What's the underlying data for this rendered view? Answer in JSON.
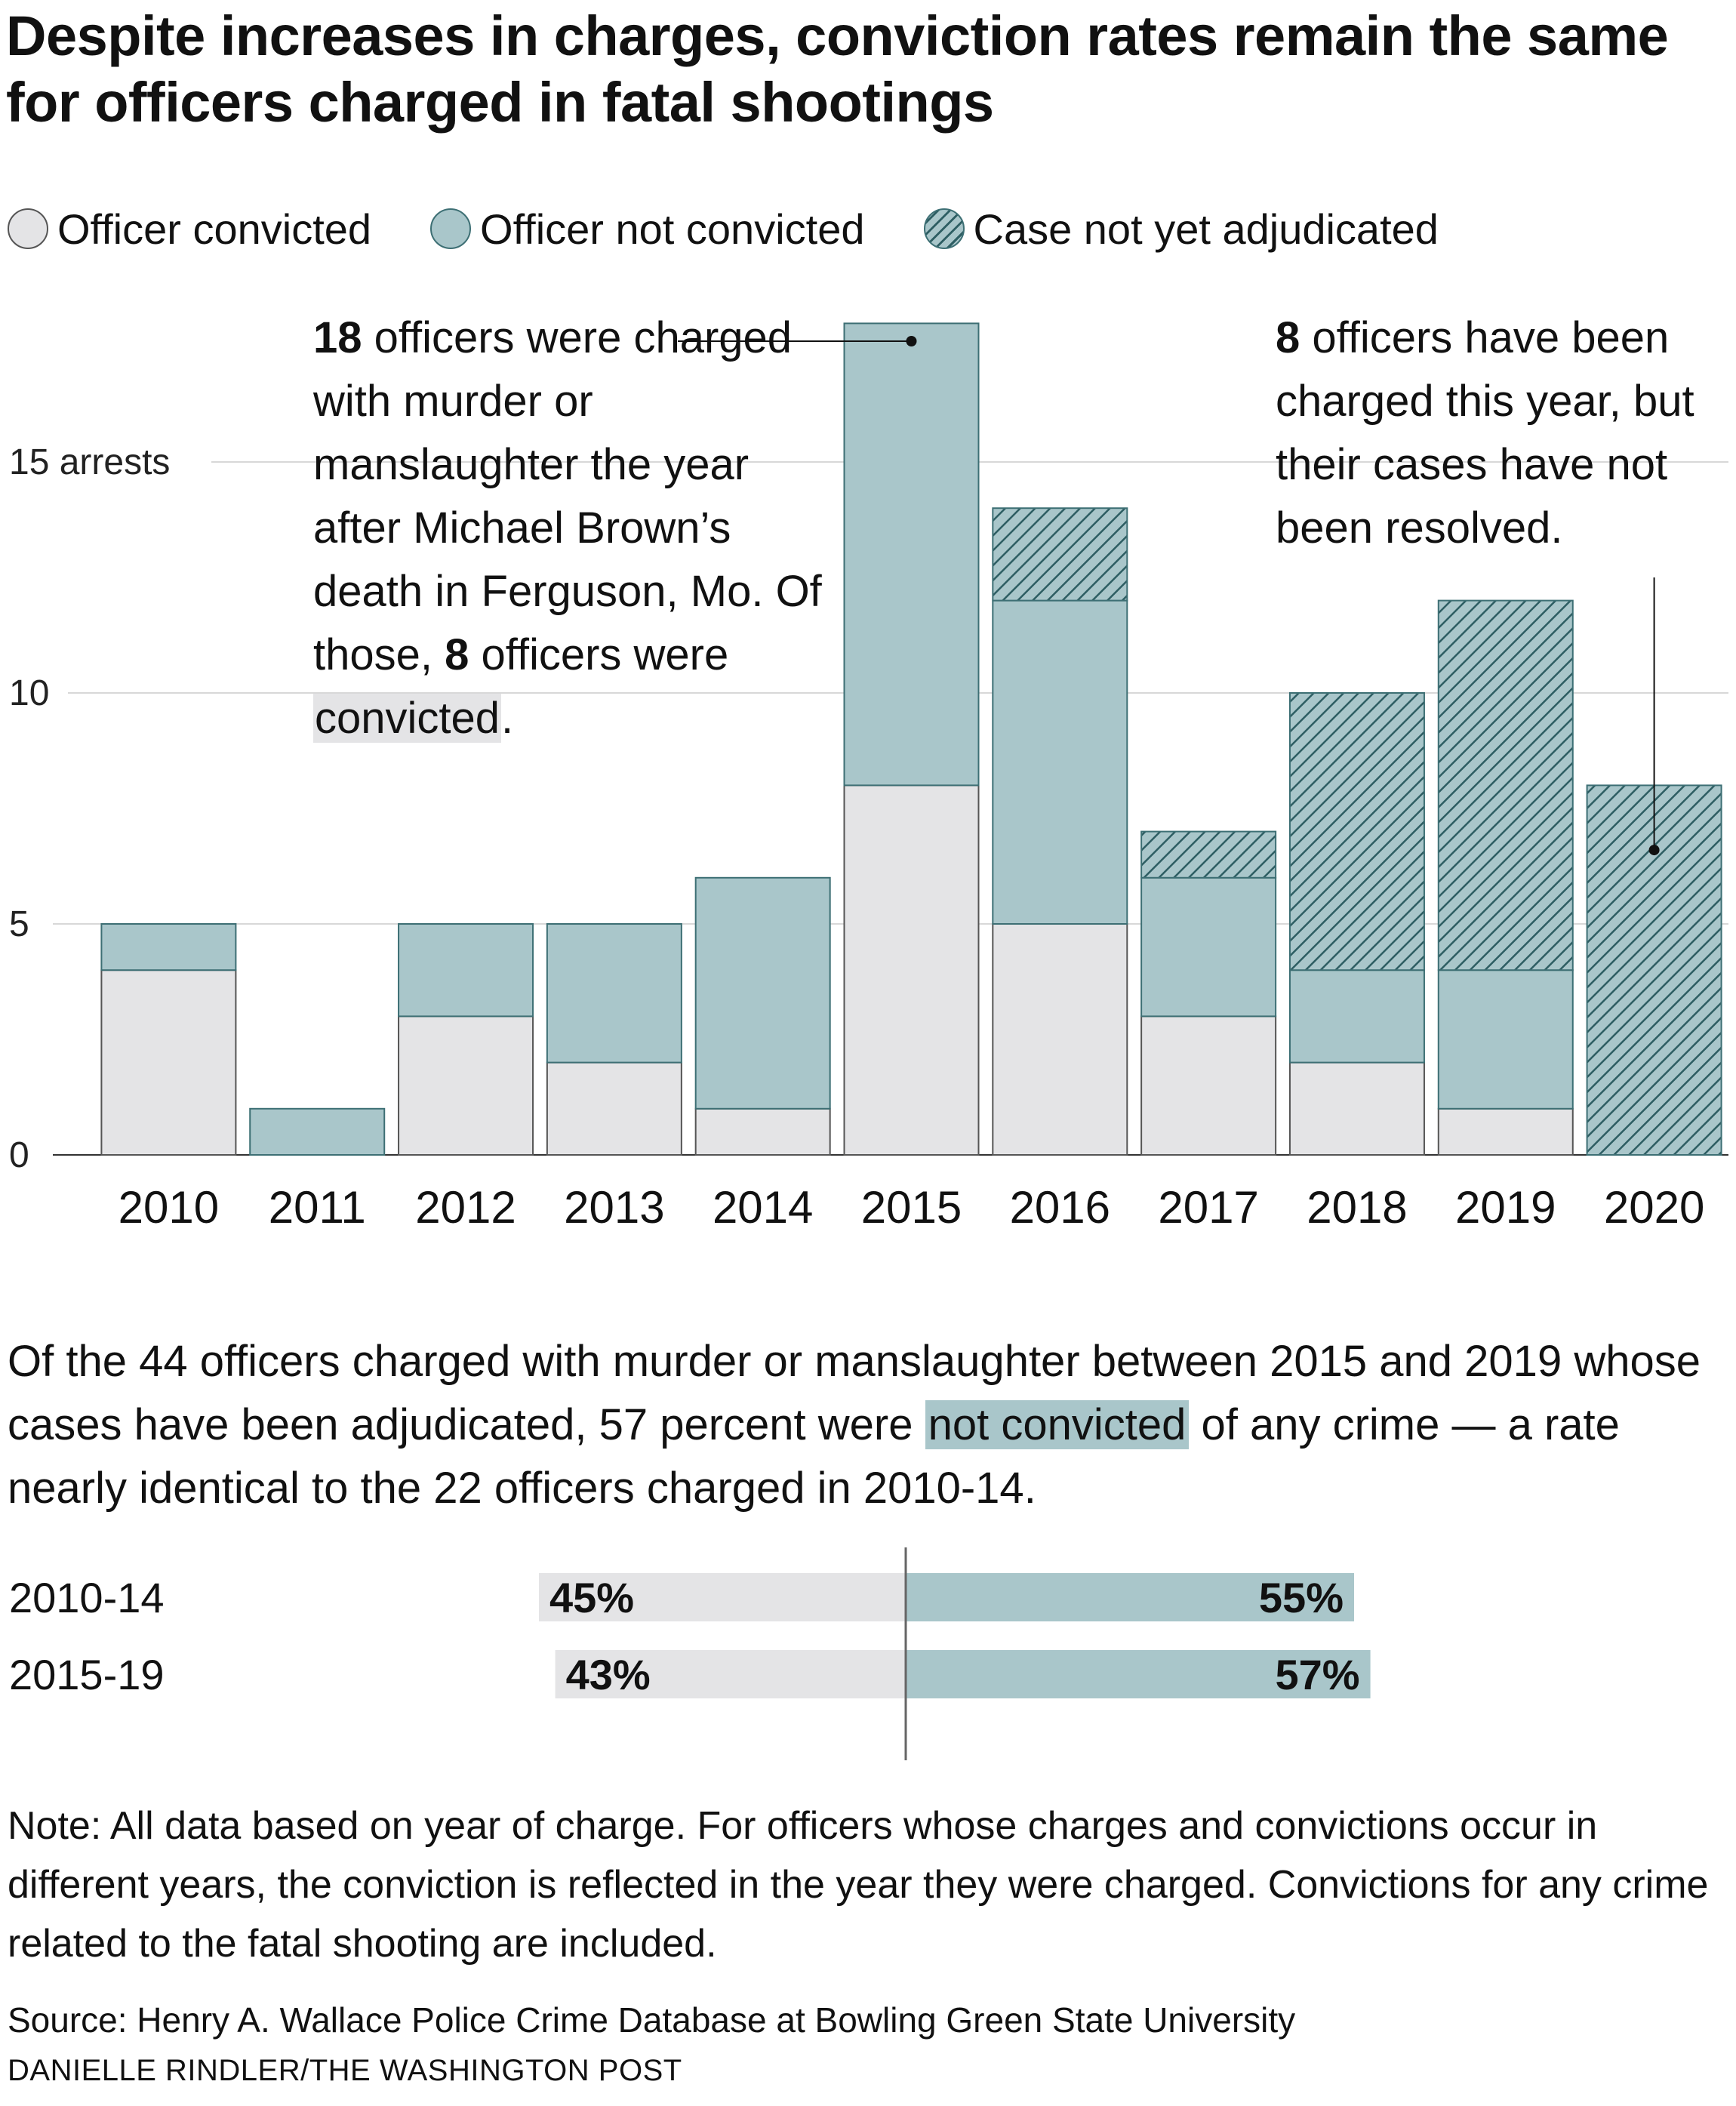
{
  "title": "Despite increases in charges, conviction rates remain the same for officers charged in fatal shootings",
  "legend": {
    "convicted": "Officer convicted",
    "not_convicted": "Officer not convicted",
    "pending": "Case not yet adjudicated"
  },
  "colors": {
    "convicted": "#e4e4e6",
    "not_convicted": "#a9c6ca",
    "pending_stroke": "#2e5e63",
    "grid": "#cccccc"
  },
  "annotations": {
    "left": {
      "bold1": "18",
      "text1": " officers were charged with murder or manslaughter the year after Michael Brown’s death in Ferguson, Mo. Of those, ",
      "bold2": "8",
      "text2": " officers were ",
      "highlight": "convicted",
      "end": "."
    },
    "right": {
      "bold1": "8",
      "text1": " officers have been charged this year, but their cases have not been resolved."
    }
  },
  "chart_data": [
    {
      "type": "bar",
      "stacked": true,
      "categories": [
        "2010",
        "2011",
        "2012",
        "2013",
        "2014",
        "2015",
        "2016",
        "2017",
        "2018",
        "2019",
        "2020"
      ],
      "series": [
        {
          "name": "Officer convicted",
          "values": [
            4,
            0,
            3,
            2,
            1,
            8,
            5,
            3,
            2,
            1,
            0
          ]
        },
        {
          "name": "Officer not convicted",
          "values": [
            1,
            1,
            2,
            3,
            5,
            10,
            7,
            3,
            2,
            3,
            0
          ]
        },
        {
          "name": "Case not yet adjudicated",
          "values": [
            0,
            0,
            0,
            0,
            0,
            0,
            2,
            1,
            6,
            8,
            8
          ]
        }
      ],
      "yticks": [
        {
          "value": 0,
          "label": "0"
        },
        {
          "value": 5,
          "label": "5"
        },
        {
          "value": 10,
          "label": "10"
        },
        {
          "value": 15,
          "label": "15 arrests"
        }
      ],
      "ylim": [
        0,
        18
      ],
      "grid": true,
      "legend_position": "top-left"
    },
    {
      "type": "bar",
      "orientation": "horizontal",
      "stacked": true,
      "diverging": true,
      "categories": [
        "2010-14",
        "2015-19"
      ],
      "series": [
        {
          "name": "Officer convicted",
          "values": [
            45,
            43
          ],
          "labels": [
            "45%",
            "43%"
          ]
        },
        {
          "name": "Officer not convicted",
          "values": [
            55,
            57
          ],
          "labels": [
            "55%",
            "57%"
          ]
        }
      ],
      "unit": "%"
    }
  ],
  "summary": {
    "before": "Of the 44 officers charged with murder or manslaughter between 2015 and 2019 whose cases have been adjudicated, 57 percent were ",
    "highlight": "not convicted",
    "after": " of any crime — a rate nearly identical to the 22 officers charged in 2010-14."
  },
  "note": "Note: All data based on year of charge. For officers whose charges and convictions occur in different years, the conviction is reflected in the year they were charged. Convictions for any crime related to the fatal shooting are included.",
  "source": "Source: Henry A. Wallace Police Crime Database at Bowling Green State University",
  "credit": "DANIELLE RINDLER/THE WASHINGTON POST"
}
